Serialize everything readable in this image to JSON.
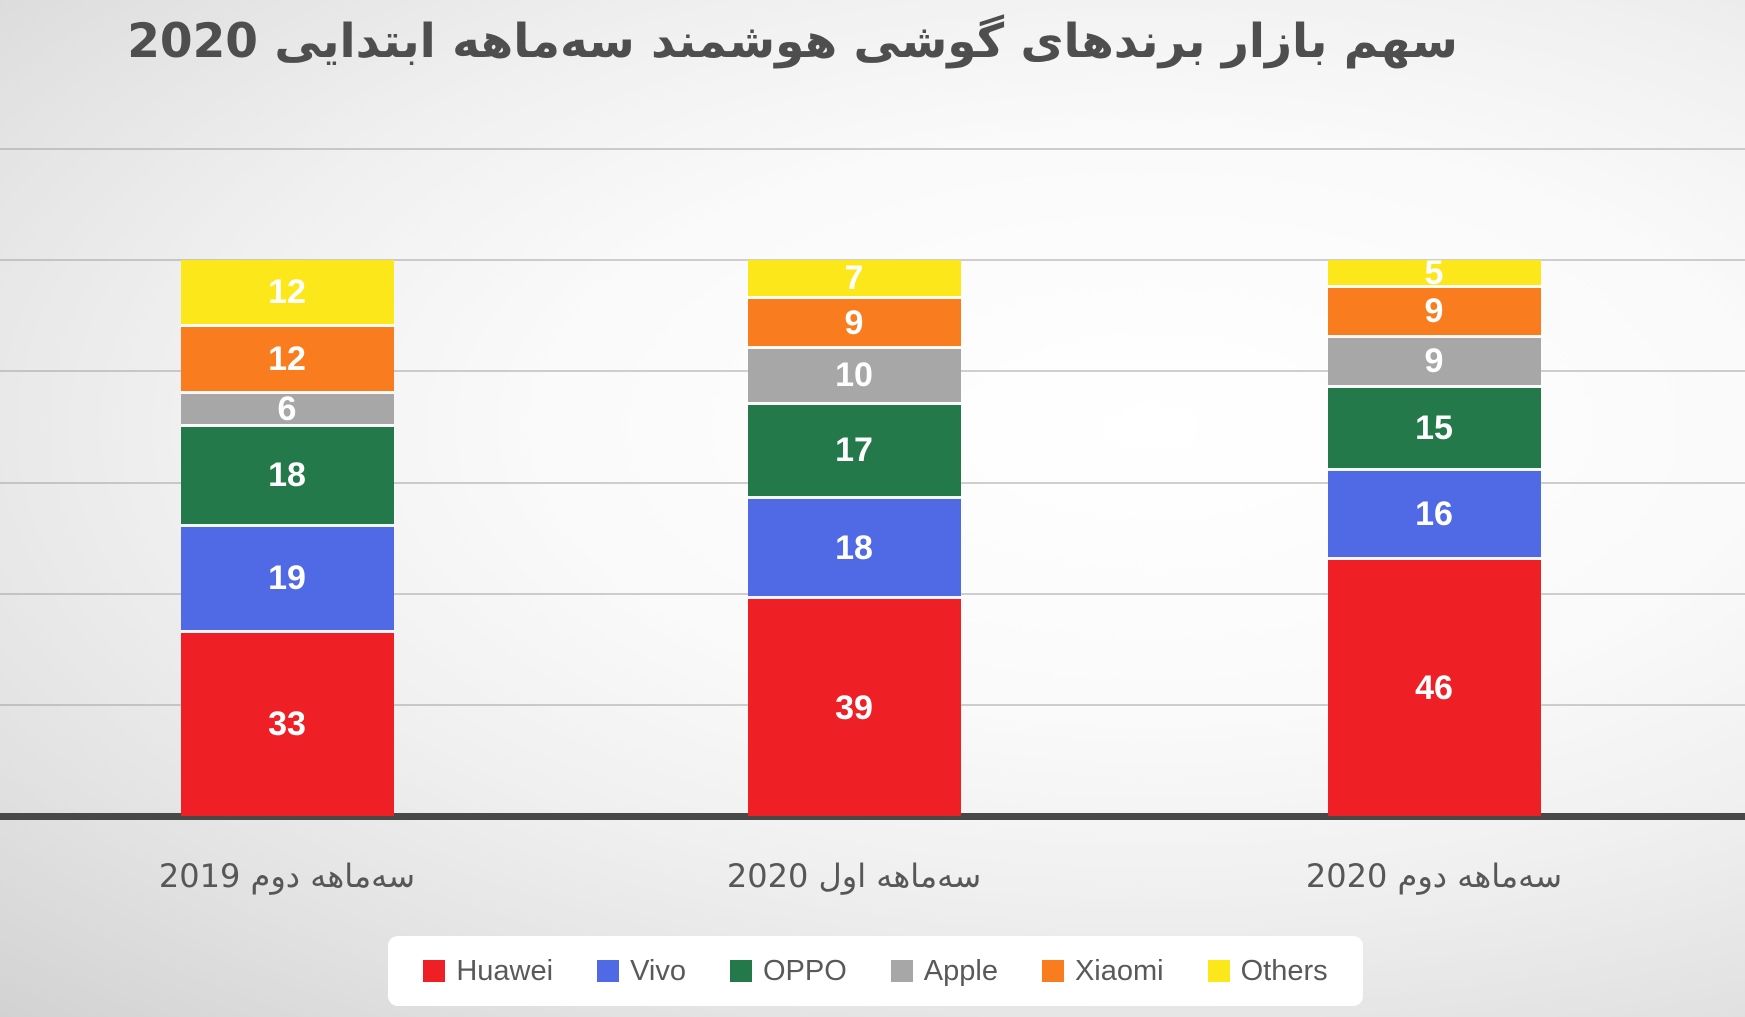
{
  "chart_data": {
    "type": "bar",
    "stacked": true,
    "title": "سهم بازار برندهای گوشی هوشمند سه‌ماهه ابتدایی 2020",
    "categories": [
      "سه‌ماهه دوم 2019",
      "سه‌ماهه اول 2020",
      "سه‌ماهه دوم 2020"
    ],
    "series": [
      {
        "name": "Huawei",
        "color": "#ee2026",
        "values": [
          33,
          39,
          46
        ]
      },
      {
        "name": "Vivo",
        "color": "#5069e4",
        "values": [
          19,
          18,
          16
        ]
      },
      {
        "name": "OPPO",
        "color": "#23794a",
        "values": [
          18,
          17,
          15
        ]
      },
      {
        "name": "Apple",
        "color": "#a7a7a7",
        "values": [
          6,
          10,
          9
        ]
      },
      {
        "name": "Xiaomi",
        "color": "#f97d1f",
        "values": [
          12,
          9,
          9
        ]
      },
      {
        "name": "Others",
        "color": "#fce81a",
        "values": [
          12,
          7,
          5
        ]
      }
    ],
    "xlabel": "",
    "ylabel": "",
    "ylim": [
      0,
      120
    ],
    "gridline_step": 20,
    "grid": true,
    "legend_position": "bottom",
    "value_label_color": "#ffffff",
    "title_color": "#4e4e4e",
    "axis_line_color": "#484848"
  }
}
